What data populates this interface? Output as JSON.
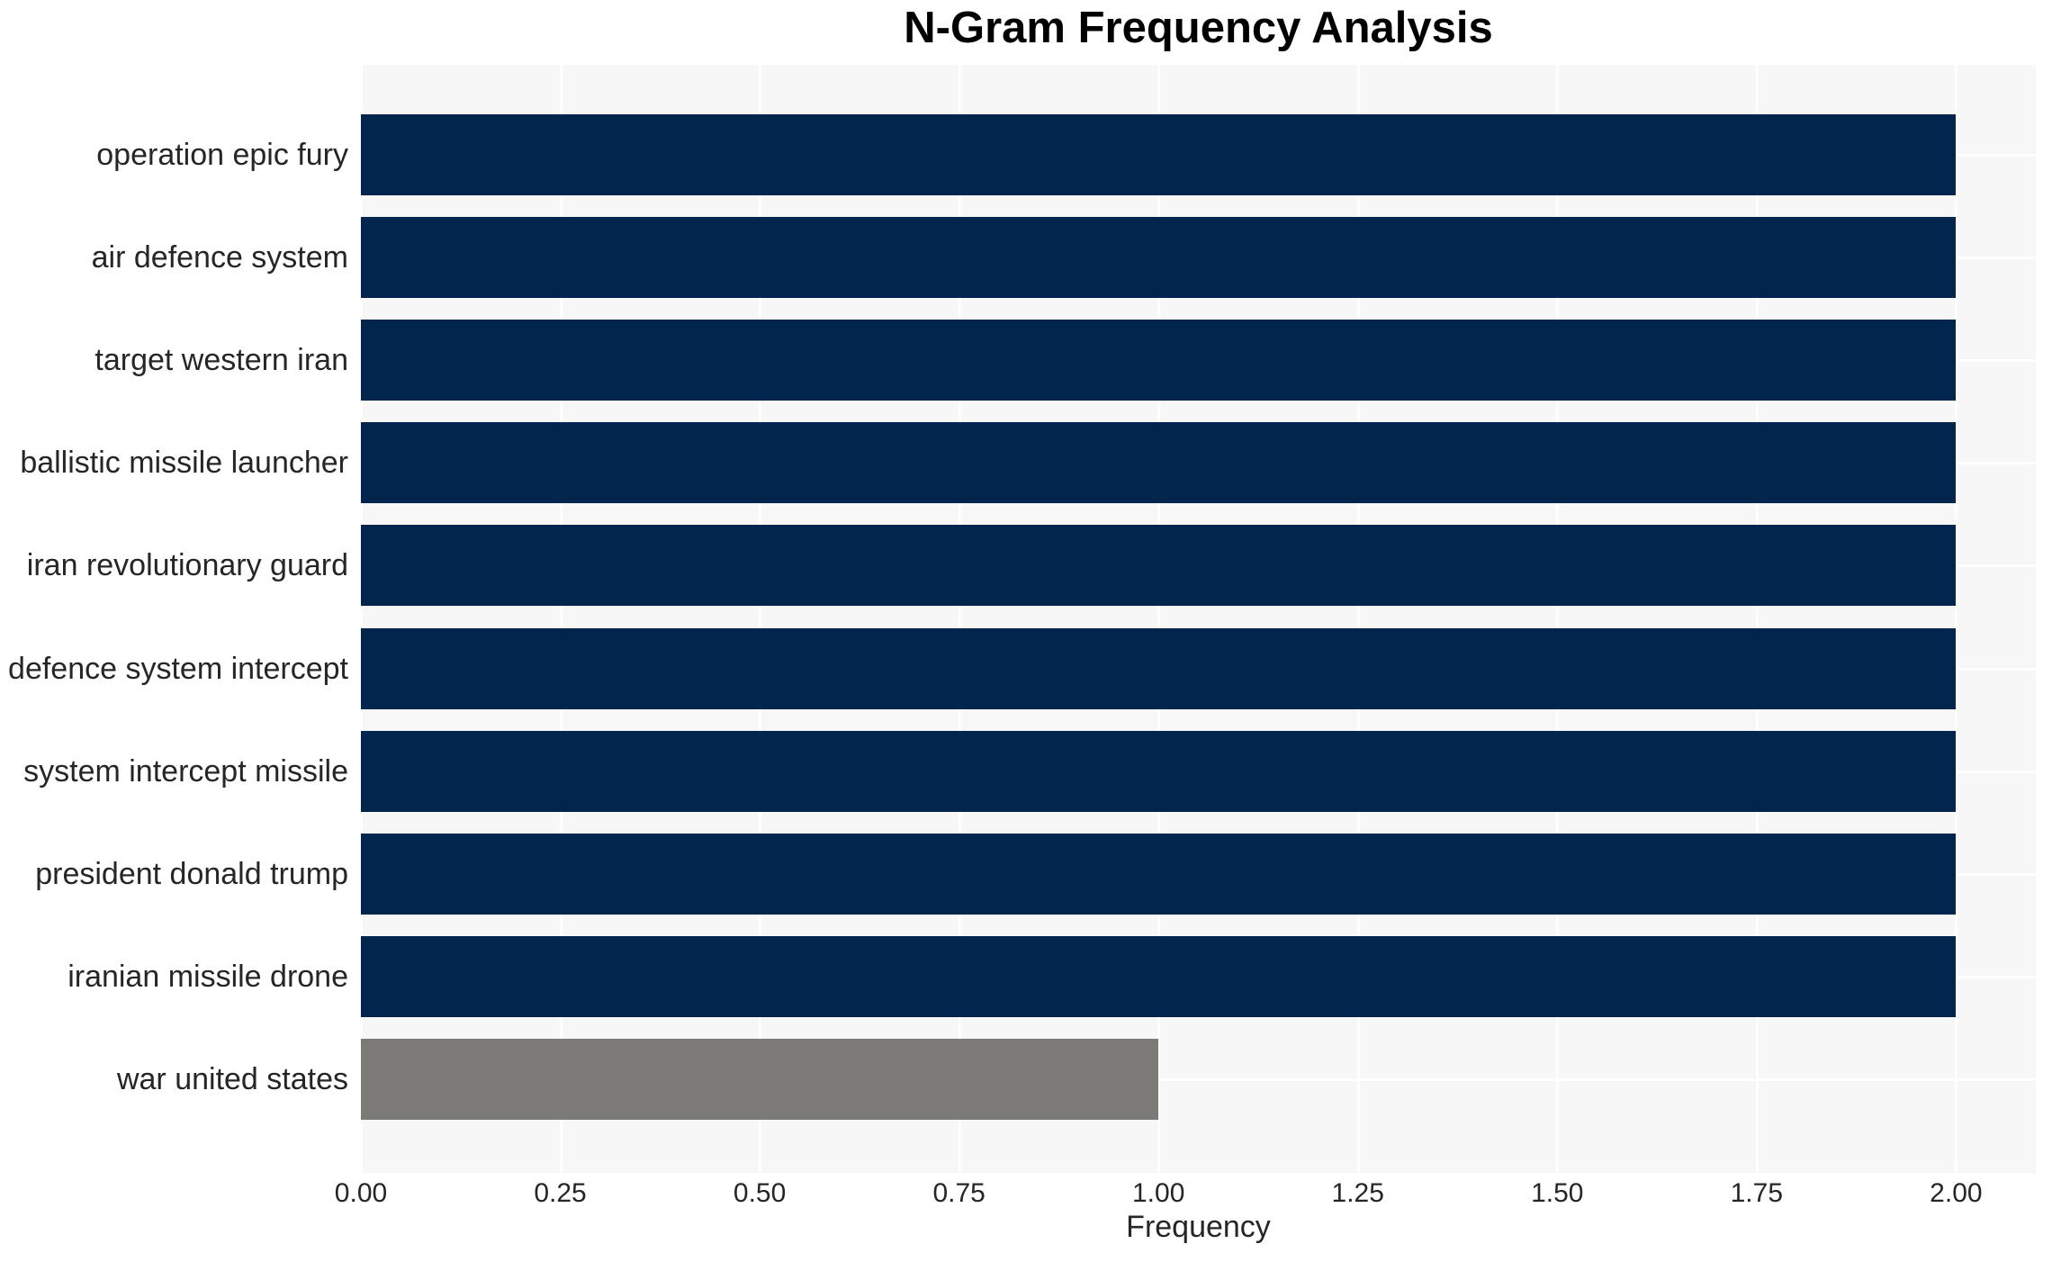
{
  "title": "N-Gram Frequency Analysis",
  "chart_data": {
    "type": "bar",
    "orientation": "horizontal",
    "title": "N-Gram Frequency Analysis",
    "xlabel": "Frequency",
    "ylabel": "",
    "categories": [
      "operation epic fury",
      "air defence system",
      "target western iran",
      "ballistic missile launcher",
      "iran revolutionary guard",
      "defence system intercept",
      "system intercept missile",
      "president donald trump",
      "iranian missile drone",
      "war united states"
    ],
    "values": [
      2,
      2,
      2,
      2,
      2,
      2,
      2,
      2,
      2,
      1
    ],
    "bar_colors": [
      "#02254e",
      "#02254e",
      "#02254e",
      "#02254e",
      "#02254e",
      "#02254e",
      "#02254e",
      "#02254e",
      "#02254e",
      "#7b7a77"
    ],
    "x_ticks": [
      "0.00",
      "0.25",
      "0.50",
      "0.75",
      "1.00",
      "1.25",
      "1.50",
      "1.75",
      "2.00"
    ],
    "x_tick_values": [
      0,
      0.25,
      0.5,
      0.75,
      1.0,
      1.25,
      1.5,
      1.75,
      2.0
    ],
    "xlim": [
      0,
      2.1
    ],
    "grid": true,
    "legend": false,
    "colors": {
      "plot_background": "#f7f7f8",
      "gridline": "#ffffff",
      "navy_bar": "#02254e",
      "gray_bar": "#7b7a77",
      "tick_text": "#262626",
      "title_text": "#000000"
    }
  }
}
